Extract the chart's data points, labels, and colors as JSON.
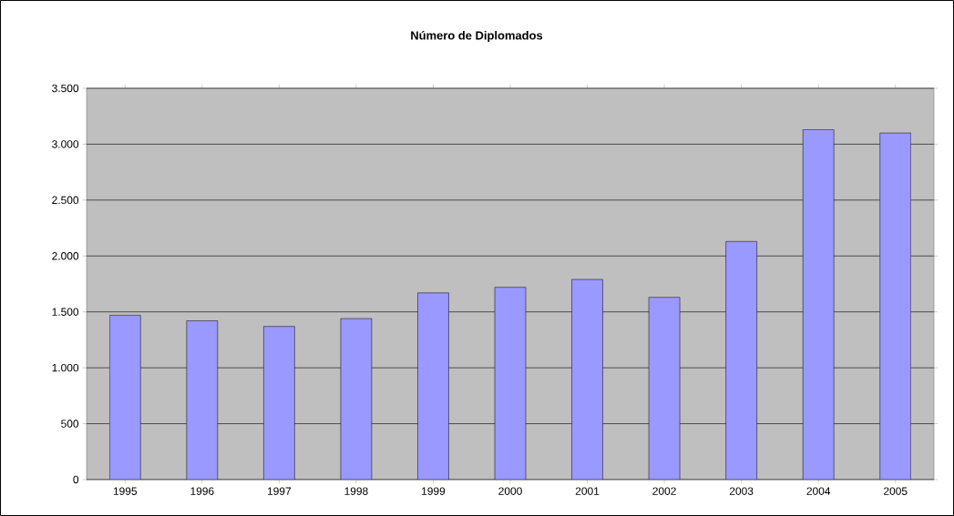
{
  "chart_data": {
    "type": "bar",
    "title": "Número de Diplomados",
    "categories": [
      "1995",
      "1996",
      "1997",
      "1998",
      "1999",
      "2000",
      "2001",
      "2002",
      "2003",
      "2004",
      "2005"
    ],
    "values": [
      1470,
      1420,
      1370,
      1440,
      1670,
      1720,
      1790,
      1630,
      2130,
      3130,
      3100
    ],
    "color": "#9999ff",
    "ylim": [
      0,
      3500
    ],
    "yticks": [
      {
        "value": 0,
        "label": "0"
      },
      {
        "value": 500,
        "label": "500"
      },
      {
        "value": 1000,
        "label": "1.000"
      },
      {
        "value": 1500,
        "label": "1.500"
      },
      {
        "value": 2000,
        "label": "2.000"
      },
      {
        "value": 2500,
        "label": "2.500"
      },
      {
        "value": 3000,
        "label": "3.000"
      },
      {
        "value": 3500,
        "label": "3.500"
      }
    ],
    "grid": "y"
  }
}
